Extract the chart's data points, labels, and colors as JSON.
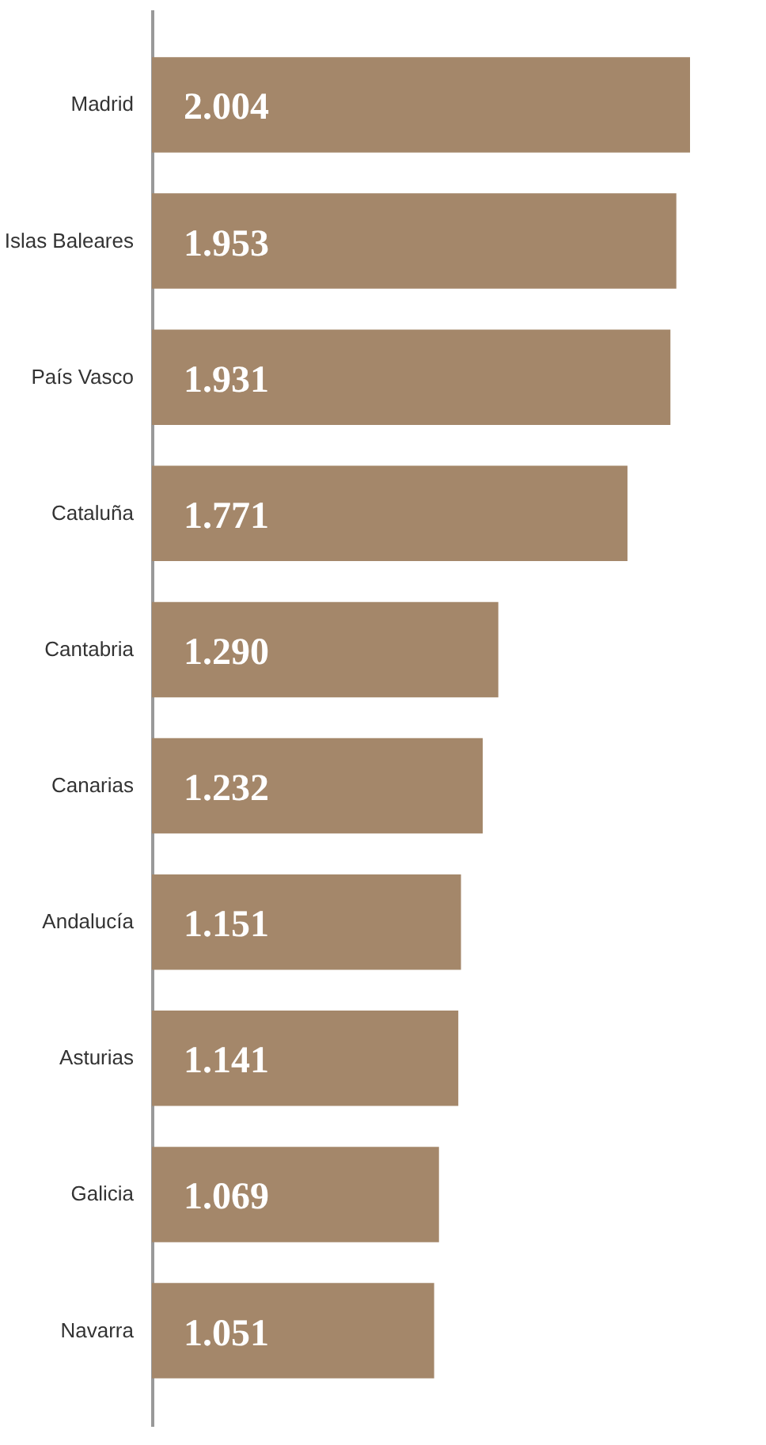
{
  "chart_data": {
    "type": "bar",
    "orientation": "horizontal",
    "categories": [
      "Madrid",
      "Islas Baleares",
      "País Vasco",
      "Cataluña",
      "Cantabria",
      "Canarias",
      "Andalucía",
      "Asturias",
      "Galicia",
      "Navarra"
    ],
    "values": [
      2.004,
      1.953,
      1.931,
      1.771,
      1.29,
      1.232,
      1.151,
      1.141,
      1.069,
      1.051
    ],
    "value_labels": [
      "2.004",
      "1.953",
      "1.931",
      "1.771",
      "1.290",
      "1.232",
      "1.151",
      "1.141",
      "1.069",
      "1.051"
    ],
    "color": "#a4876a"
  }
}
